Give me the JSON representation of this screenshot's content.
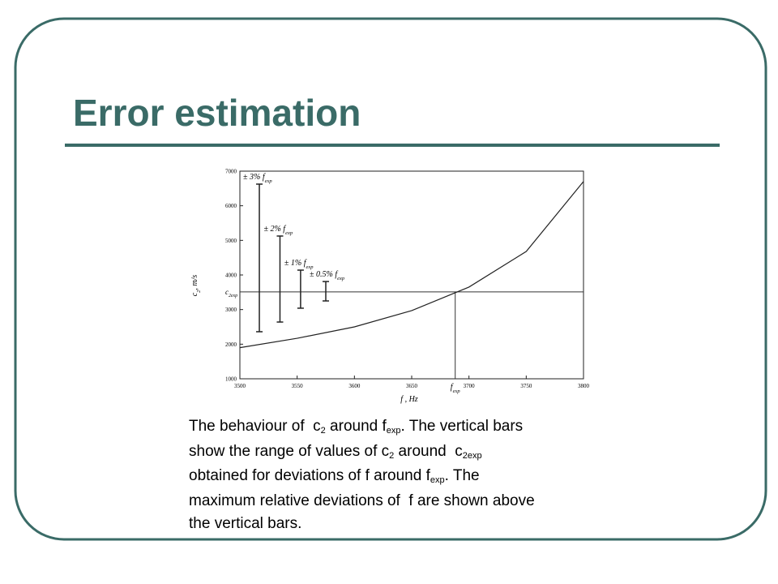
{
  "slide": {
    "title": "Error estimation",
    "caption": [
      [
        {
          "text": "The behaviour of  c"
        },
        {
          "text": "2",
          "sub": true
        },
        {
          "text": " around f"
        },
        {
          "text": "exp",
          "sub": true
        },
        {
          "text": ". The vertical bars"
        }
      ],
      [
        {
          "text": "show the range of values of c"
        },
        {
          "text": "2",
          "sub": true
        },
        {
          "text": " around  c"
        },
        {
          "text": "2exp",
          "sub": true
        }
      ],
      [
        {
          "text": "obtained for deviations of f around f"
        },
        {
          "text": "exp",
          "sub": true
        },
        {
          "text": ". The"
        }
      ],
      [
        {
          "text": "maximum relative deviations of  f are shown above"
        }
      ],
      [
        {
          "text": "the vertical bars."
        }
      ]
    ]
  },
  "chart_data": {
    "type": "line",
    "x_label": [
      {
        "text": "f , Hz"
      }
    ],
    "y_label": [
      {
        "text": "c"
      },
      {
        "text": "2",
        "sub": true
      },
      {
        "text": ", m/s"
      }
    ],
    "x": [
      3500,
      3550,
      3600,
      3650,
      3700,
      3750,
      3800
    ],
    "values": [
      1900,
      2170,
      2500,
      2970,
      3650,
      4680,
      6700
    ],
    "xlim": [
      3500,
      3800
    ],
    "xticks": [
      3500,
      3550,
      3600,
      3650,
      3700,
      3750,
      3800
    ],
    "ylim": [
      1000,
      7000
    ],
    "yticks": [
      1000,
      2000,
      3000,
      4000,
      5000,
      6000,
      7000
    ],
    "hline": {
      "value": 3510,
      "label": [
        {
          "text": "c"
        },
        {
          "text": "2exp",
          "sub": true
        }
      ]
    },
    "vline": {
      "value": 3688,
      "label": [
        {
          "text": "f"
        },
        {
          "text": "exp",
          "sub": true
        }
      ]
    },
    "error_bars": [
      {
        "x": 3517,
        "low": 2360,
        "high": 6625,
        "label": [
          {
            "text": "± 3% f"
          },
          {
            "text": "exp",
            "sub": true
          }
        ]
      },
      {
        "x": 3535,
        "low": 2640,
        "high": 5125,
        "label": [
          {
            "text": "± 2% f"
          },
          {
            "text": "exp",
            "sub": true
          }
        ]
      },
      {
        "x": 3553,
        "low": 3040,
        "high": 4140,
        "label": [
          {
            "text": "± 1% f"
          },
          {
            "text": "exp",
            "sub": true
          }
        ]
      },
      {
        "x": 3575,
        "low": 3250,
        "high": 3810,
        "label": [
          {
            "text": "± 0.5% f"
          },
          {
            "text": "exp",
            "sub": true
          }
        ]
      }
    ],
    "color": "#222222"
  }
}
